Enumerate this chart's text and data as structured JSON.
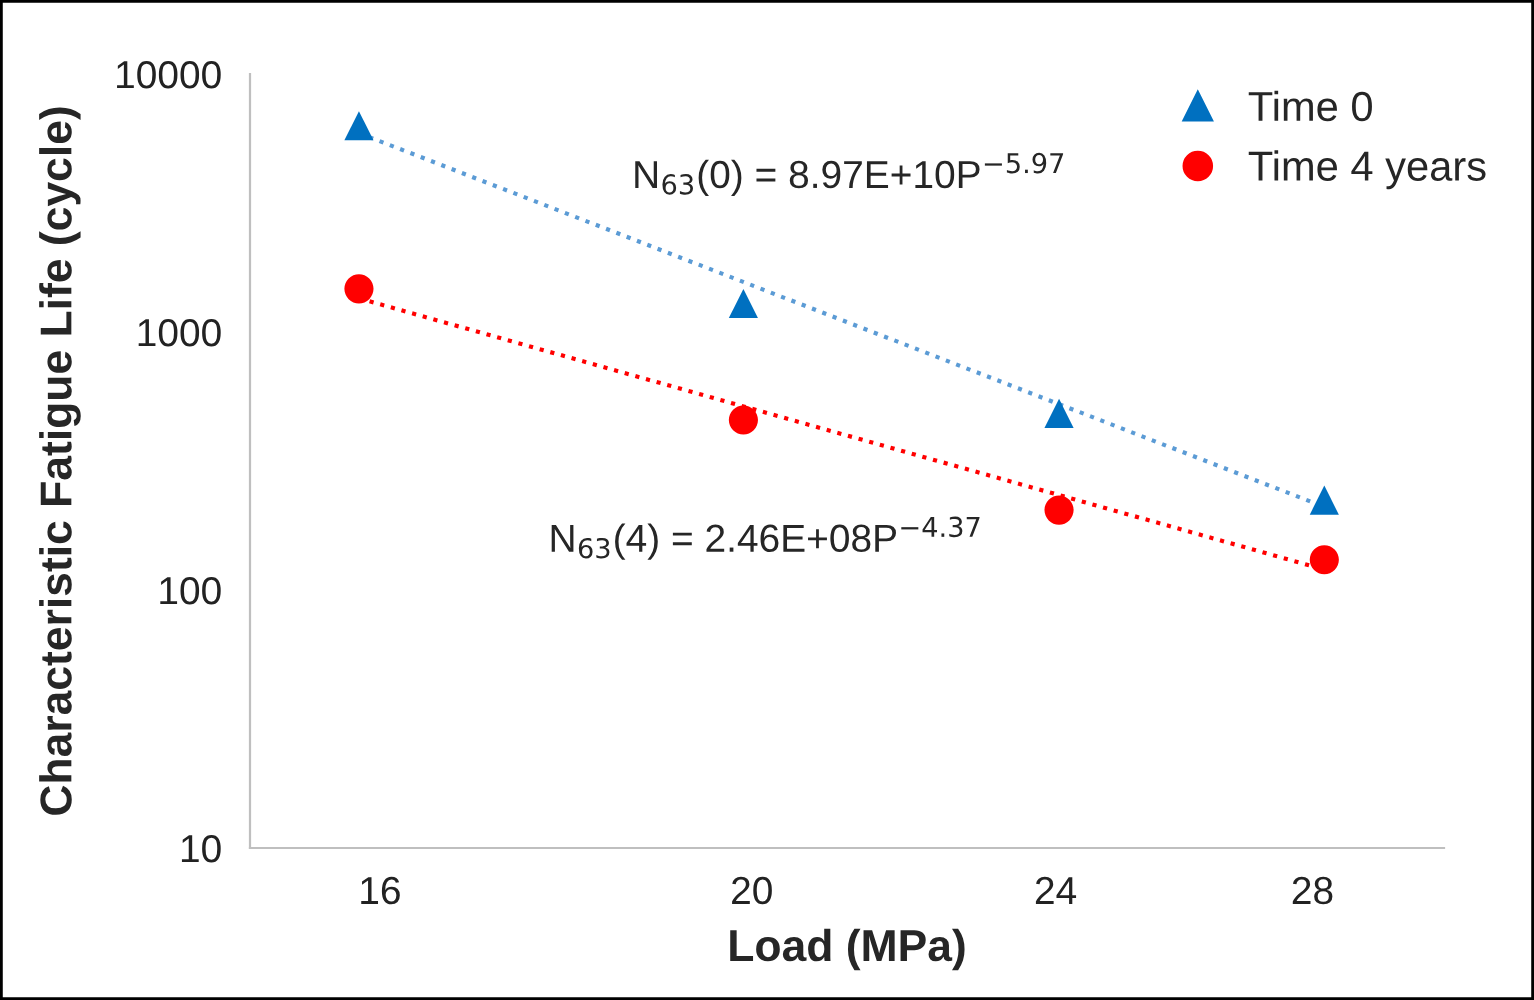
{
  "chart_data": {
    "type": "scatter",
    "xlabel": "Load (MPa)",
    "ylabel": "Characteristic Fatigue Life (cycle)",
    "log": "xy",
    "xlim": [
      14.8,
      30.3
    ],
    "xticks": [
      16,
      20,
      24,
      28
    ],
    "ylim": [
      10,
      10000
    ],
    "yticks": [
      10,
      100,
      1000,
      10000
    ],
    "grid": false,
    "legend": "top right",
    "series": [
      {
        "type": "line",
        "color": "#5b9bd5",
        "line_style": "dotted",
        "marker": "none",
        "x": [
          15.8,
          28.2
        ],
        "values": [
          5900,
          210
        ]
      },
      {
        "type": "line",
        "color": "#ff0000",
        "line_style": "dotted",
        "marker": "none",
        "x": [
          15.8,
          28.2
        ],
        "values": [
          1350,
          120
        ]
      },
      {
        "name": "Time 0",
        "color": "#0070c0",
        "marker": "triangle",
        "x": [
          15.8,
          19.9,
          24.05,
          28.2
        ],
        "values": [
          6300,
          1290,
          484,
          223
        ]
      },
      {
        "name": "Time 4 years",
        "color": "#ff0000",
        "marker": "circle",
        "x": [
          15.8,
          19.9,
          24.05,
          28.2
        ],
        "values": [
          1470,
          456,
          204,
          131
        ]
      }
    ],
    "annotations": [
      "N$_{63}$(0) = 8.97E+10P$^{−5.97}$",
      "N$_{63}$(4) = 2.46E+08P$^{−4.37}$"
    ]
  }
}
